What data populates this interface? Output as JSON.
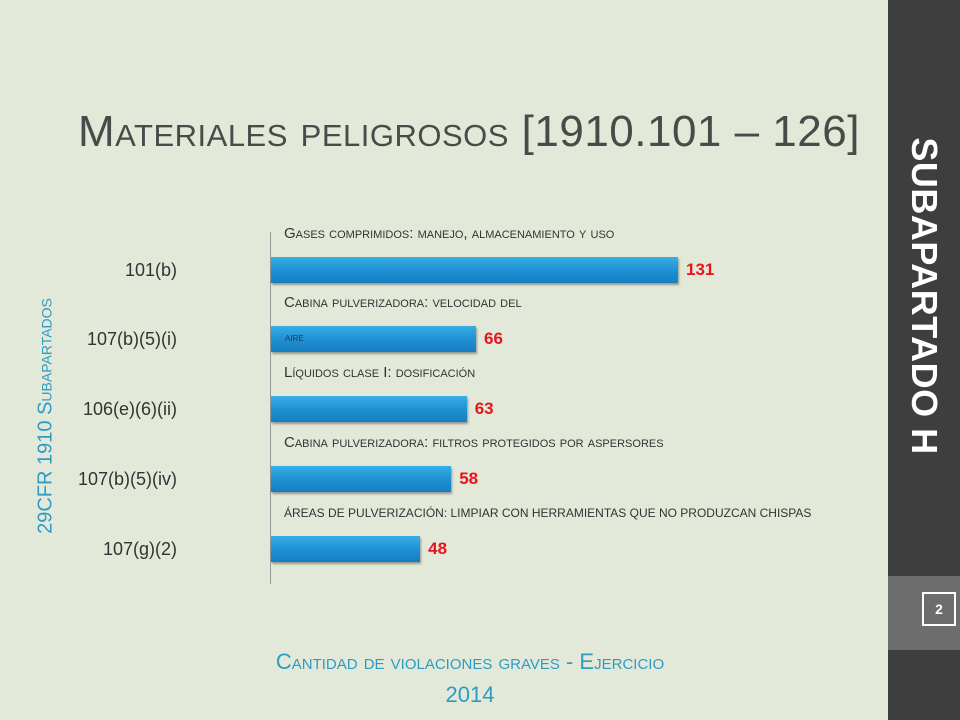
{
  "slide": {
    "title": "Materiales peligrosos [1910.101 – 126]",
    "side_label": "SUBAPARTADO H",
    "left_label": "29CFR 1910 Subapartados",
    "page_number": "2",
    "footer_caption": "Cantidad de violaciones graves - Ejercicio",
    "footer_year": "2014"
  },
  "chart_data": {
    "type": "bar",
    "orientation": "horizontal",
    "categories": [
      "101(b)",
      "107(b)(5)(i)",
      "106(e)(6)(ii)",
      "107(b)(5)(iv)",
      "107(g)(2)"
    ],
    "values": [
      131,
      66,
      63,
      58,
      48
    ],
    "value_labels": [
      "131",
      "66",
      "63",
      "58",
      "48"
    ],
    "descriptions": [
      "Gases comprimidos: manejo, almacenamiento y uso",
      "Cabina pulverizadora: velocidad del",
      "Líquidos clase I: dosificación",
      "Cabina pulverizadora: filtros protegidos por aspersores",
      "ÁREAS DE PULVERIZACIÓN: LIMPIAR CON HERRAMIENTAS QUE NO PRODUZCAN CHISPAS"
    ],
    "description_continuation": "aire",
    "grid": false,
    "legend": "none",
    "colors": {
      "bar": "#1d8fd2",
      "value": "#e8141c"
    }
  },
  "colors": {
    "background": "#e3e9d9",
    "side_bar": "#3e3e3e",
    "accent": "#2e9bc5"
  }
}
